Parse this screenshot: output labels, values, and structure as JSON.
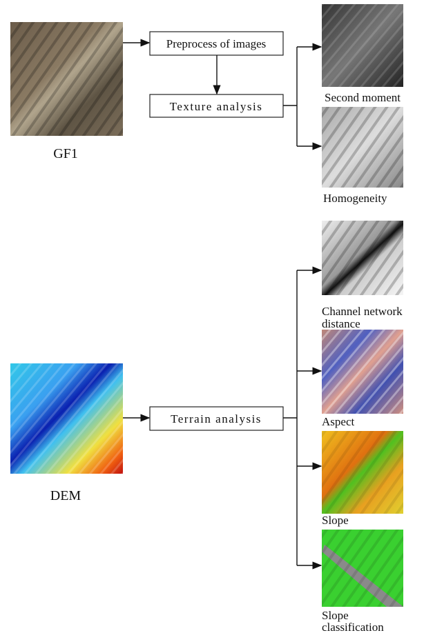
{
  "inputs": [
    {
      "label": "GF1"
    },
    {
      "label": "DEM"
    }
  ],
  "processes": [
    {
      "label": "Preprocess of images"
    },
    {
      "label": "Texture analysis"
    },
    {
      "label": "Terrain analysis"
    }
  ],
  "outputs": [
    {
      "lines": [
        "Second moment"
      ]
    },
    {
      "lines": [
        "Homogeneity"
      ]
    },
    {
      "lines": [
        "Channel network",
        "distance"
      ]
    },
    {
      "lines": [
        "Aspect"
      ]
    },
    {
      "lines": [
        "Slope"
      ]
    },
    {
      "lines": [
        "Slope",
        "classification"
      ]
    }
  ]
}
